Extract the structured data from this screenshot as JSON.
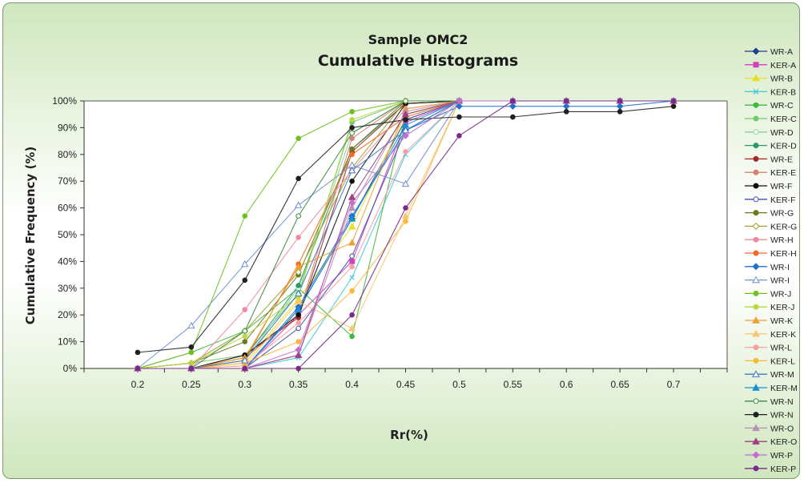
{
  "chart_data": {
    "type": "line",
    "title": "Cumulative Histograms",
    "subtitle": "Sample OMC2",
    "xlabel": "Rr(%)",
    "ylabel": "Cumulative Frequency (%)",
    "x": [
      0.2,
      0.25,
      0.3,
      0.35,
      0.4,
      0.45,
      0.5,
      0.55,
      0.6,
      0.65,
      0.7
    ],
    "x_tick_labels": [
      "0.2",
      "0.25",
      "0.3",
      "0.35",
      "0.4",
      "0.45",
      "0.5",
      "0.55",
      "0.6",
      "0.65",
      "0.7"
    ],
    "y_tick_labels": [
      "0%",
      "10%",
      "20%",
      "30%",
      "40%",
      "50%",
      "60%",
      "70%",
      "80%",
      "90%",
      "100%"
    ],
    "xlim": [
      0.15,
      0.75
    ],
    "ylim": [
      0,
      100
    ],
    "grid": false,
    "legend_position": "right",
    "series": [
      {
        "name": "WR-A",
        "color": "#1f3f8f",
        "marker": "diamond",
        "values": [
          0,
          0,
          0,
          22,
          56,
          93,
          100,
          100,
          100,
          100,
          100
        ]
      },
      {
        "name": "KER-A",
        "color": "#d040c0",
        "marker": "square",
        "values": [
          0,
          0,
          0,
          20,
          40,
          92,
          100,
          100,
          100,
          100,
          100
        ]
      },
      {
        "name": "WR-B",
        "color": "#e8e020",
        "marker": "triangle",
        "values": [
          0,
          0,
          2,
          26,
          53,
          95,
          100,
          100,
          100,
          100,
          100
        ]
      },
      {
        "name": "KER-B",
        "color": "#40c8e0",
        "marker": "x",
        "values": [
          0,
          0,
          0,
          4,
          34,
          80,
          100,
          100,
          100,
          100,
          100
        ]
      },
      {
        "name": "WR-C",
        "color": "#40b840",
        "marker": "circle",
        "values": [
          0,
          6,
          14,
          30,
          12,
          95,
          100,
          100,
          100,
          100,
          100
        ]
      },
      {
        "name": "KER-C",
        "color": "#70c870",
        "marker": "circle",
        "values": [
          0,
          2,
          5,
          28,
          92,
          100,
          100,
          100,
          100,
          100,
          100
        ]
      },
      {
        "name": "WR-D",
        "color": "#8cd09a",
        "marker": "circle-open",
        "values": [
          0,
          0,
          3,
          30,
          88,
          100,
          100,
          100,
          100,
          100,
          100
        ]
      },
      {
        "name": "KER-D",
        "color": "#2a9a6a",
        "marker": "circle",
        "values": [
          0,
          0,
          4,
          31,
          82,
          99,
          100,
          100,
          100,
          100,
          100
        ]
      },
      {
        "name": "WR-E",
        "color": "#a02a20",
        "marker": "circle",
        "values": [
          0,
          0,
          5,
          19,
          81,
          99,
          100,
          100,
          100,
          100,
          100
        ]
      },
      {
        "name": "KER-E",
        "color": "#d88070",
        "marker": "circle",
        "values": [
          0,
          0,
          4,
          20,
          86,
          100,
          100,
          100,
          100,
          100,
          100
        ]
      },
      {
        "name": "WR-F",
        "color": "#101010",
        "marker": "circle",
        "values": [
          0,
          0,
          5,
          20,
          70,
          99,
          100,
          100,
          100,
          100,
          100
        ]
      },
      {
        "name": "KER-F",
        "color": "#4050a8",
        "marker": "circle-open",
        "values": [
          0,
          0,
          0,
          15,
          42,
          89,
          100,
          100,
          100,
          100,
          100
        ]
      },
      {
        "name": "WR-G",
        "color": "#6a7a20",
        "marker": "circle",
        "values": [
          0,
          2,
          10,
          35,
          82,
          100,
          100,
          100,
          100,
          100,
          100
        ]
      },
      {
        "name": "KER-G",
        "color": "#a0a030",
        "marker": "diamond-open",
        "values": [
          0,
          2,
          14,
          36,
          75,
          100,
          100,
          100,
          100,
          100,
          100
        ]
      },
      {
        "name": "WR-H",
        "color": "#f08aa0",
        "marker": "circle",
        "values": [
          0,
          0,
          22,
          49,
          74,
          97,
          100,
          100,
          100,
          100,
          100
        ]
      },
      {
        "name": "KER-H",
        "color": "#f06a20",
        "marker": "circle",
        "values": [
          0,
          0,
          3,
          39,
          80,
          94,
          100,
          100,
          100,
          100,
          100
        ]
      },
      {
        "name": "WR-I",
        "color": "#2070d0",
        "marker": "diamond",
        "values": [
          0,
          0,
          0,
          23,
          57,
          89,
          98,
          98,
          98,
          98,
          100
        ]
      },
      {
        "name": "WR-I",
        "color": "#7090d0",
        "marker": "triangle-open",
        "values": [
          0,
          16,
          39,
          61,
          76,
          69,
          100,
          100,
          100,
          100,
          100
        ]
      },
      {
        "name": "WR-J",
        "color": "#70c020",
        "marker": "circle",
        "values": [
          0,
          6,
          57,
          86,
          96,
          100,
          100,
          100,
          100,
          100,
          100
        ]
      },
      {
        "name": "KER-J",
        "color": "#b8d840",
        "marker": "circle",
        "values": [
          0,
          2,
          12,
          27,
          93,
          100,
          100,
          100,
          100,
          100,
          100
        ]
      },
      {
        "name": "WR-K",
        "color": "#f0a030",
        "marker": "triangle",
        "values": [
          0,
          0,
          4,
          38,
          47,
          97,
          100,
          100,
          100,
          100,
          100
        ]
      },
      {
        "name": "KER-K",
        "color": "#f8c870",
        "marker": "triangle",
        "values": [
          0,
          0,
          1,
          25,
          15,
          57,
          100,
          100,
          100,
          100,
          100
        ]
      },
      {
        "name": "WR-L",
        "color": "#f8a0a0",
        "marker": "circle",
        "values": [
          0,
          0,
          1,
          17,
          38,
          81,
          100,
          100,
          100,
          100,
          100
        ]
      },
      {
        "name": "KER-L",
        "color": "#f8b840",
        "marker": "circle",
        "values": [
          0,
          0,
          2,
          10,
          29,
          55,
          100,
          100,
          100,
          100,
          100
        ]
      },
      {
        "name": "WR-M",
        "color": "#3878c8",
        "marker": "triangle-open",
        "values": [
          0,
          0,
          3,
          28,
          74,
          89,
          100,
          100,
          100,
          100,
          100
        ]
      },
      {
        "name": "KER-M",
        "color": "#1890d0",
        "marker": "triangle",
        "values": [
          0,
          0,
          0,
          22,
          56,
          91,
          100,
          100,
          100,
          100,
          100
        ]
      },
      {
        "name": "WR-N",
        "color": "#3a8a40",
        "marker": "circle-open",
        "values": [
          0,
          0,
          14,
          57,
          88,
          100,
          100,
          100,
          100,
          100,
          100
        ]
      },
      {
        "name": "WR-N",
        "color": "#202020",
        "marker": "circle",
        "values": [
          6,
          8,
          33,
          71,
          90,
          93,
          94,
          94,
          96,
          96,
          98
        ]
      },
      {
        "name": "WR-O",
        "color": "#b890b8",
        "marker": "triangle",
        "values": [
          0,
          0,
          0,
          5,
          60,
          96,
          100,
          100,
          100,
          100,
          100
        ]
      },
      {
        "name": "KER-O",
        "color": "#a04080",
        "marker": "triangle",
        "values": [
          0,
          0,
          0,
          5,
          64,
          95,
          100,
          100,
          100,
          100,
          100
        ]
      },
      {
        "name": "WR-P",
        "color": "#c070d0",
        "marker": "diamond",
        "values": [
          0,
          0,
          0,
          7,
          62,
          87,
          100,
          100,
          100,
          100,
          100
        ]
      },
      {
        "name": "KER-P",
        "color": "#7a2a8a",
        "marker": "circle",
        "values": [
          0,
          0,
          0,
          0,
          20,
          60,
          87,
          100,
          100,
          100,
          100
        ]
      }
    ]
  }
}
